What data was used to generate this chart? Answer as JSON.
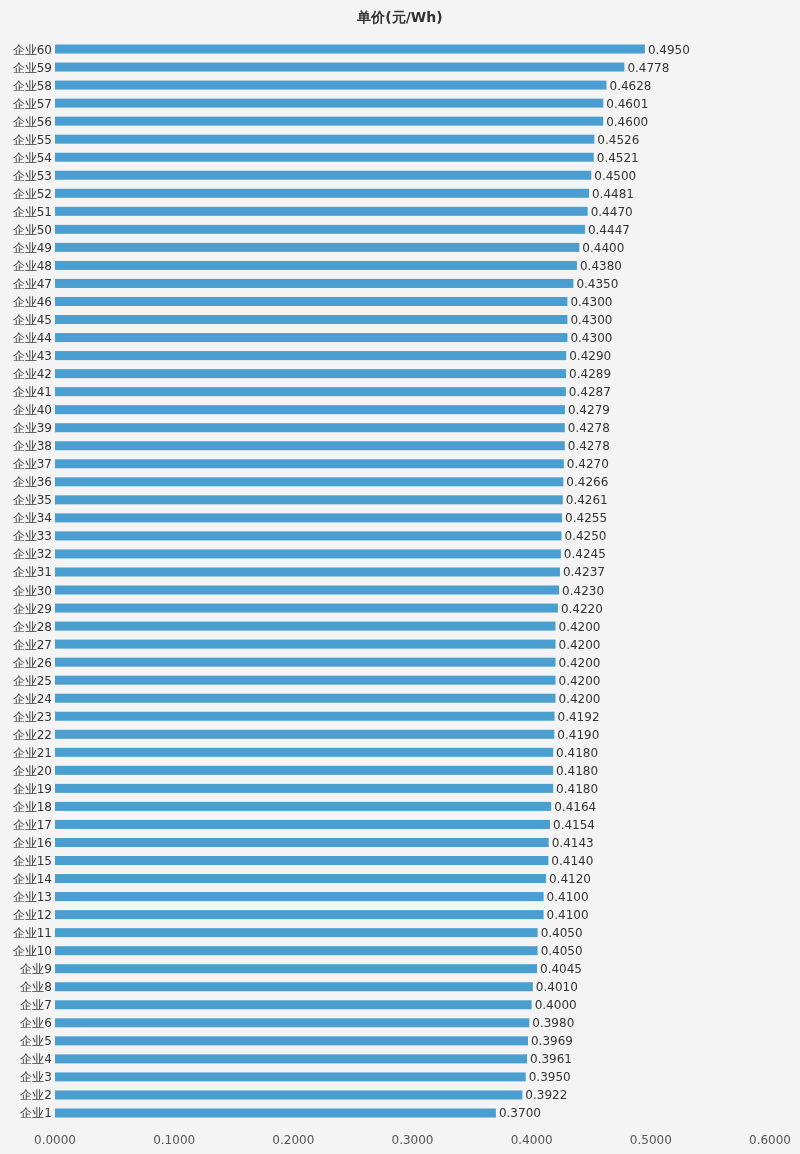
{
  "chart_data": {
    "type": "bar",
    "orientation": "horizontal",
    "title": "单价(元/Wh)",
    "categories": [
      "企业60",
      "企业59",
      "企业58",
      "企业57",
      "企业56",
      "企业55",
      "企业54",
      "企业53",
      "企业52",
      "企业51",
      "企业50",
      "企业49",
      "企业48",
      "企业47",
      "企业46",
      "企业45",
      "企业44",
      "企业43",
      "企业42",
      "企业41",
      "企业40",
      "企业39",
      "企业38",
      "企业37",
      "企业36",
      "企业35",
      "企业34",
      "企业33",
      "企业32",
      "企业31",
      "企业30",
      "企业29",
      "企业28",
      "企业27",
      "企业26",
      "企业25",
      "企业24",
      "企业23",
      "企业22",
      "企业21",
      "企业20",
      "企业19",
      "企业18",
      "企业17",
      "企业16",
      "企业15",
      "企业14",
      "企业13",
      "企业12",
      "企业11",
      "企业10",
      "企业9",
      "企业8",
      "企业7",
      "企业6",
      "企业5",
      "企业4",
      "企业3",
      "企业2",
      "企业1"
    ],
    "values": [
      0.495,
      0.4778,
      0.4628,
      0.4601,
      0.46,
      0.4526,
      0.4521,
      0.45,
      0.4481,
      0.447,
      0.4447,
      0.44,
      0.438,
      0.435,
      0.43,
      0.43,
      0.43,
      0.429,
      0.4289,
      0.4287,
      0.4279,
      0.4278,
      0.4278,
      0.427,
      0.4266,
      0.4261,
      0.4255,
      0.425,
      0.4245,
      0.4237,
      0.423,
      0.422,
      0.42,
      0.42,
      0.42,
      0.42,
      0.42,
      0.4192,
      0.419,
      0.418,
      0.418,
      0.418,
      0.4164,
      0.4154,
      0.4143,
      0.414,
      0.412,
      0.41,
      0.41,
      0.405,
      0.405,
      0.4045,
      0.401,
      0.4,
      0.398,
      0.3969,
      0.3961,
      0.395,
      0.3922,
      0.37
    ],
    "value_labels": [
      "0.4950",
      "0.4778",
      "0.4628",
      "0.4601",
      "0.4600",
      "0.4526",
      "0.4521",
      "0.4500",
      "0.4481",
      "0.4470",
      "0.4447",
      "0.4400",
      "0.4380",
      "0.4350",
      "0.4300",
      "0.4300",
      "0.4300",
      "0.4290",
      "0.4289",
      "0.4287",
      "0.4279",
      "0.4278",
      "0.4278",
      "0.4270",
      "0.4266",
      "0.4261",
      "0.4255",
      "0.4250",
      "0.4245",
      "0.4237",
      "0.4230",
      "0.4220",
      "0.4200",
      "0.4200",
      "0.4200",
      "0.4200",
      "0.4200",
      "0.4192",
      "0.4190",
      "0.4180",
      "0.4180",
      "0.4180",
      "0.4164",
      "0.4154",
      "0.4143",
      "0.4140",
      "0.4120",
      "0.4100",
      "0.4100",
      "0.4050",
      "0.4050",
      "0.4045",
      "0.4010",
      "0.4000",
      "0.3980",
      "0.3969",
      "0.3961",
      "0.3950",
      "0.3922",
      "0.3700"
    ],
    "color": "#4a9ed0",
    "xlim": [
      0,
      0.6
    ],
    "xticks": [
      {
        "value": 0,
        "label": "0.0000"
      },
      {
        "value": 0.1,
        "label": "0.1000"
      },
      {
        "value": 0.2,
        "label": "0.2000"
      },
      {
        "value": 0.3,
        "label": "0.3000"
      },
      {
        "value": 0.4,
        "label": "0.4000"
      },
      {
        "value": 0.5,
        "label": "0.5000"
      },
      {
        "value": 0.6,
        "label": "0.6000"
      }
    ]
  }
}
